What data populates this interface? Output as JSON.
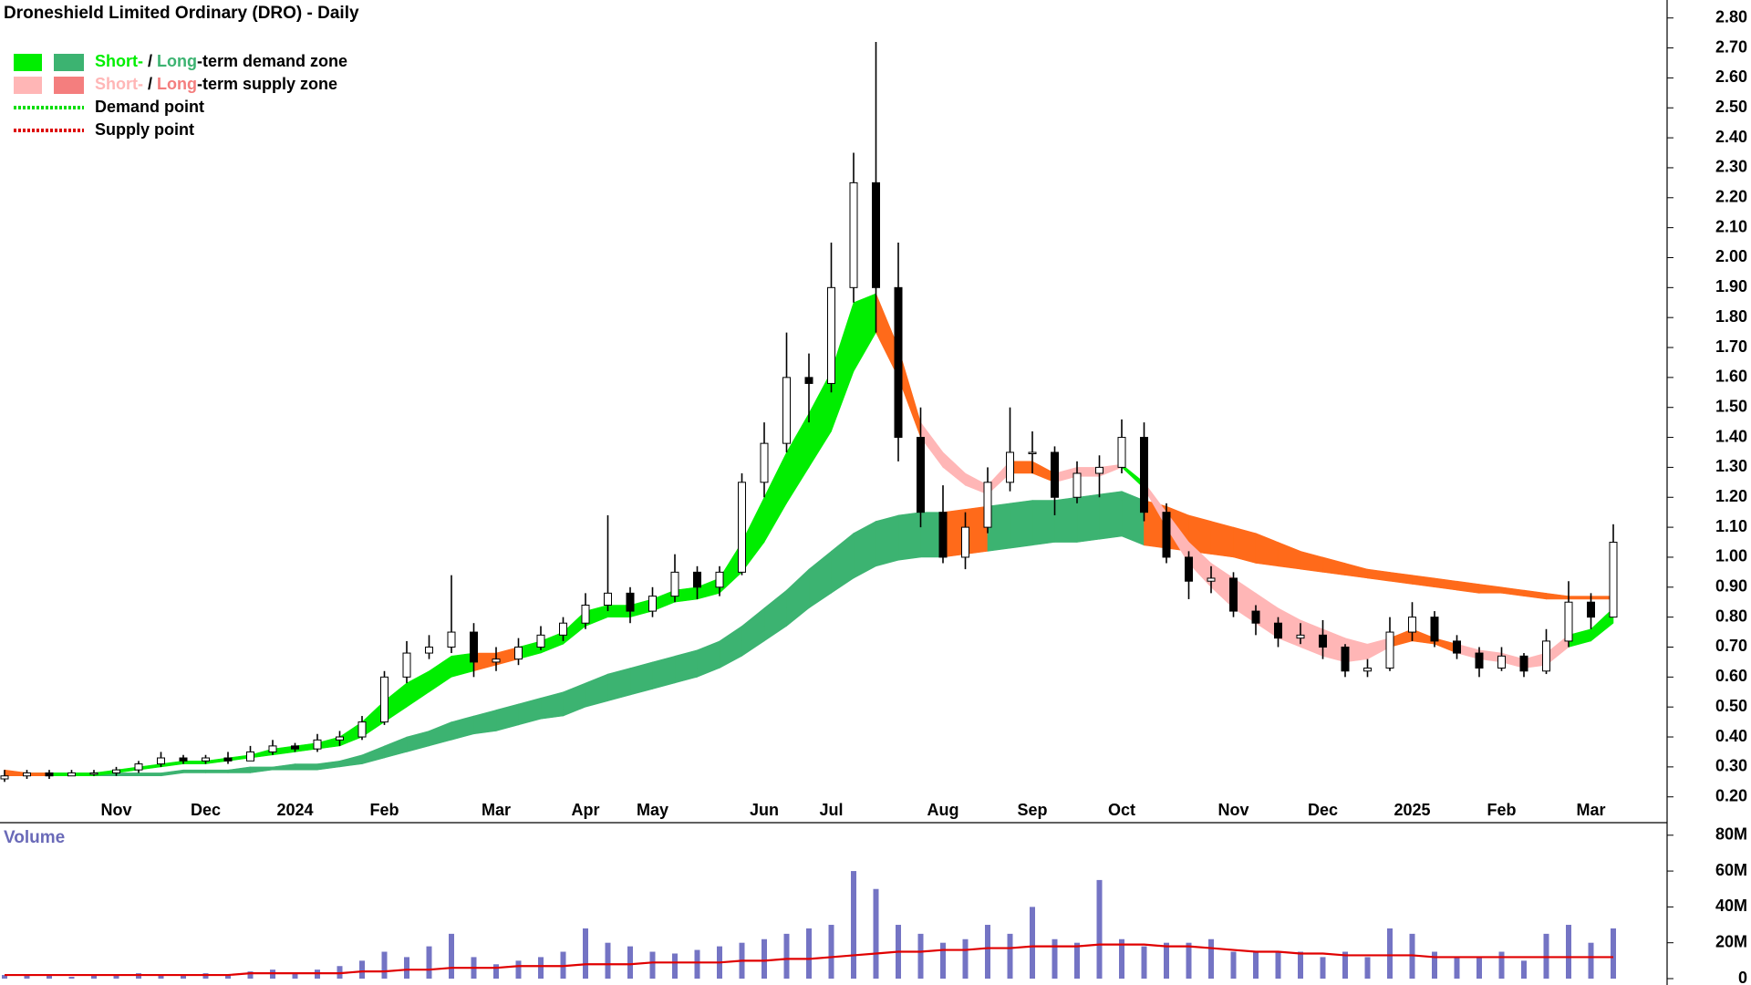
{
  "chart_data": [
    {
      "type": "candlestick",
      "title": "Droneshield Limited Ordinary (DRO) - Daily",
      "categories": [
        null,
        null,
        null,
        null,
        null,
        "Nov",
        null,
        null,
        null,
        "Dec",
        null,
        null,
        null,
        "2024",
        null,
        null,
        null,
        "Feb",
        null,
        null,
        null,
        null,
        "Mar",
        null,
        null,
        null,
        "Apr",
        null,
        null,
        "May",
        null,
        null,
        null,
        null,
        "Jun",
        null,
        null,
        "Jul",
        null,
        null,
        null,
        null,
        "Aug",
        null,
        null,
        null,
        "Sep",
        null,
        null,
        null,
        "Oct",
        null,
        null,
        null,
        null,
        "Nov",
        null,
        null,
        null,
        "Dec",
        null,
        null,
        null,
        "2025",
        null,
        null,
        null,
        "Feb",
        null,
        null,
        null,
        "Mar",
        null
      ],
      "open": [
        0.26,
        0.27,
        0.28,
        0.27,
        0.28,
        0.28,
        0.29,
        0.31,
        0.33,
        0.32,
        0.33,
        0.32,
        0.35,
        0.37,
        0.36,
        0.39,
        0.4,
        0.45,
        0.6,
        0.68,
        0.7,
        0.75,
        0.65,
        0.66,
        0.7,
        0.74,
        0.78,
        0.84,
        0.88,
        0.82,
        0.87,
        0.95,
        0.9,
        0.95,
        1.25,
        1.38,
        1.6,
        1.58,
        1.9,
        2.25,
        1.9,
        1.4,
        1.15,
        1.0,
        1.1,
        1.25,
        1.35,
        1.35,
        1.2,
        1.28,
        1.3,
        1.4,
        1.15,
        1.0,
        0.92,
        0.93,
        0.82,
        0.78,
        0.73,
        0.74,
        0.7,
        0.62,
        0.63,
        0.75,
        0.8,
        0.72,
        0.68,
        0.63,
        0.67,
        0.62,
        0.72,
        0.85,
        0.8
      ],
      "high": [
        0.29,
        0.29,
        0.29,
        0.29,
        0.29,
        0.3,
        0.32,
        0.35,
        0.34,
        0.34,
        0.35,
        0.37,
        0.39,
        0.38,
        0.41,
        0.42,
        0.47,
        0.62,
        0.72,
        0.74,
        0.94,
        0.78,
        0.7,
        0.73,
        0.77,
        0.8,
        0.88,
        1.14,
        0.9,
        0.9,
        1.01,
        0.97,
        0.97,
        1.28,
        1.45,
        1.75,
        1.68,
        2.05,
        2.35,
        2.72,
        2.05,
        1.5,
        1.24,
        1.15,
        1.3,
        1.5,
        1.42,
        1.37,
        1.32,
        1.34,
        1.46,
        1.45,
        1.18,
        1.02,
        0.97,
        0.95,
        0.84,
        0.8,
        0.78,
        0.79,
        0.71,
        0.66,
        0.8,
        0.85,
        0.82,
        0.74,
        0.7,
        0.7,
        0.68,
        0.76,
        0.92,
        0.88,
        1.11
      ],
      "low": [
        0.25,
        0.26,
        0.26,
        0.27,
        0.27,
        0.27,
        0.28,
        0.3,
        0.31,
        0.31,
        0.31,
        0.32,
        0.34,
        0.35,
        0.35,
        0.37,
        0.39,
        0.44,
        0.58,
        0.66,
        0.68,
        0.6,
        0.62,
        0.64,
        0.69,
        0.72,
        0.76,
        0.82,
        0.78,
        0.8,
        0.85,
        0.86,
        0.87,
        0.94,
        1.2,
        1.35,
        1.45,
        1.55,
        1.85,
        1.75,
        1.32,
        1.1,
        0.98,
        0.96,
        1.08,
        1.22,
        1.28,
        1.14,
        1.18,
        1.2,
        1.28,
        1.12,
        0.98,
        0.86,
        0.88,
        0.8,
        0.74,
        0.7,
        0.71,
        0.66,
        0.6,
        0.6,
        0.62,
        0.72,
        0.7,
        0.66,
        0.6,
        0.62,
        0.6,
        0.61,
        0.7,
        0.76,
        0.8
      ],
      "close": [
        0.27,
        0.28,
        0.27,
        0.28,
        0.28,
        0.29,
        0.31,
        0.33,
        0.32,
        0.33,
        0.32,
        0.35,
        0.37,
        0.36,
        0.39,
        0.4,
        0.45,
        0.6,
        0.68,
        0.7,
        0.75,
        0.65,
        0.66,
        0.7,
        0.74,
        0.78,
        0.84,
        0.88,
        0.82,
        0.87,
        0.95,
        0.9,
        0.95,
        1.25,
        1.38,
        1.6,
        1.58,
        1.9,
        2.25,
        1.9,
        1.4,
        1.15,
        1.0,
        1.1,
        1.25,
        1.35,
        1.35,
        1.2,
        1.28,
        1.3,
        1.4,
        1.15,
        1.0,
        0.92,
        0.93,
        0.82,
        0.78,
        0.73,
        0.74,
        0.7,
        0.62,
        0.63,
        0.75,
        0.8,
        0.72,
        0.68,
        0.63,
        0.67,
        0.62,
        0.72,
        0.85,
        0.8,
        1.05
      ],
      "up_color": "#ffffff",
      "down_color": "#000000",
      "wick_color": "#000000",
      "zones": [
        {
          "upper": [
            0.28,
            0.28,
            0.28,
            0.28,
            0.28,
            0.28,
            0.28,
            0.28,
            0.29,
            0.29,
            0.29,
            0.3,
            0.3,
            0.31,
            0.31,
            0.32,
            0.34,
            0.37,
            0.4,
            0.42,
            0.45,
            0.47,
            0.49,
            0.51,
            0.53,
            0.55,
            0.58,
            0.61,
            0.63,
            0.65,
            0.67,
            0.69,
            0.72,
            0.77,
            0.83,
            0.89,
            0.96,
            1.02,
            1.08,
            1.12,
            1.14,
            1.15,
            1.15,
            1.16,
            1.17,
            1.18,
            1.19,
            1.19,
            1.2,
            1.21,
            1.22,
            1.19,
            1.17,
            1.14,
            1.12,
            1.1,
            1.08,
            1.05,
            1.02,
            1.0,
            0.98,
            0.96,
            0.95,
            0.94,
            0.93,
            0.92,
            0.91,
            0.9,
            0.89,
            0.88,
            0.87,
            0.87,
            0.87
          ],
          "lower": [
            0.27,
            0.27,
            0.27,
            0.27,
            0.27,
            0.27,
            0.27,
            0.27,
            0.28,
            0.28,
            0.28,
            0.28,
            0.29,
            0.29,
            0.29,
            0.3,
            0.31,
            0.33,
            0.35,
            0.37,
            0.39,
            0.41,
            0.42,
            0.44,
            0.46,
            0.47,
            0.5,
            0.52,
            0.54,
            0.56,
            0.58,
            0.6,
            0.63,
            0.67,
            0.72,
            0.77,
            0.83,
            0.88,
            0.93,
            0.97,
            0.99,
            1.0,
            1.0,
            1.01,
            1.02,
            1.03,
            1.04,
            1.05,
            1.05,
            1.06,
            1.07,
            1.04,
            1.03,
            1.02,
            1.01,
            1.0,
            0.98,
            0.97,
            0.96,
            0.95,
            0.94,
            0.93,
            0.92,
            0.91,
            0.9,
            0.89,
            0.88,
            0.88,
            0.87,
            0.86,
            0.86,
            0.86,
            0.86
          ],
          "colors": [
            "#3cb371",
            "#3cb371",
            "#3cb371",
            "#3cb371",
            "#3cb371",
            "#3cb371",
            "#3cb371",
            "#3cb371",
            "#3cb371",
            "#3cb371",
            "#3cb371",
            "#3cb371",
            "#3cb371",
            "#3cb371",
            "#3cb371",
            "#3cb371",
            "#3cb371",
            "#3cb371",
            "#3cb371",
            "#3cb371",
            "#3cb371",
            "#3cb371",
            "#3cb371",
            "#3cb371",
            "#3cb371",
            "#3cb371",
            "#3cb371",
            "#3cb371",
            "#3cb371",
            "#3cb371",
            "#3cb371",
            "#3cb371",
            "#3cb371",
            "#3cb371",
            "#3cb371",
            "#3cb371",
            "#3cb371",
            "#3cb371",
            "#3cb371",
            "#3cb371",
            "#3cb371",
            "#3cb371",
            "#ff6a1a",
            "#ff6a1a",
            "#3cb371",
            "#3cb371",
            "#3cb371",
            "#3cb371",
            "#3cb371",
            "#3cb371",
            "#3cb371",
            "#ff6a1a",
            "#ff6a1a",
            "#ff6a1a",
            "#ff6a1a",
            "#ff6a1a",
            "#ff6a1a",
            "#ff6a1a",
            "#ff6a1a",
            "#ff6a1a",
            "#ff6a1a",
            "#ff6a1a",
            "#ff6a1a",
            "#ff6a1a",
            "#ff6a1a",
            "#ff6a1a",
            "#ff6a1a",
            "#ff6a1a",
            "#ff6a1a",
            "#ff6a1a",
            "#ff6a1a",
            "#ff6a1a",
            "#ff6a1a"
          ]
        },
        {
          "upper": [
            0.29,
            0.28,
            0.28,
            0.28,
            0.28,
            0.29,
            0.3,
            0.31,
            0.32,
            0.32,
            0.33,
            0.34,
            0.36,
            0.37,
            0.38,
            0.4,
            0.45,
            0.52,
            0.58,
            0.62,
            0.67,
            0.68,
            0.68,
            0.7,
            0.72,
            0.75,
            0.82,
            0.84,
            0.84,
            0.86,
            0.89,
            0.9,
            0.93,
            1.05,
            1.2,
            1.35,
            1.48,
            1.62,
            1.85,
            1.88,
            1.7,
            1.45,
            1.35,
            1.28,
            1.24,
            1.32,
            1.32,
            1.28,
            1.3,
            1.3,
            1.31,
            1.25,
            1.15,
            1.05,
            0.98,
            0.93,
            0.88,
            0.83,
            0.79,
            0.76,
            0.73,
            0.71,
            0.73,
            0.76,
            0.73,
            0.71,
            0.69,
            0.68,
            0.66,
            0.68,
            0.74,
            0.76,
            0.83
          ],
          "lower": [
            0.27,
            0.27,
            0.27,
            0.27,
            0.27,
            0.28,
            0.29,
            0.3,
            0.31,
            0.31,
            0.32,
            0.33,
            0.34,
            0.35,
            0.36,
            0.37,
            0.4,
            0.45,
            0.5,
            0.55,
            0.6,
            0.62,
            0.64,
            0.66,
            0.68,
            0.71,
            0.77,
            0.8,
            0.8,
            0.82,
            0.85,
            0.86,
            0.88,
            0.95,
            1.05,
            1.18,
            1.3,
            1.42,
            1.62,
            1.75,
            1.6,
            1.4,
            1.3,
            1.24,
            1.21,
            1.28,
            1.28,
            1.25,
            1.27,
            1.27,
            1.3,
            1.23,
            1.1,
            0.98,
            0.9,
            0.83,
            0.78,
            0.73,
            0.7,
            0.67,
            0.65,
            0.66,
            0.7,
            0.72,
            0.71,
            0.68,
            0.66,
            0.65,
            0.63,
            0.64,
            0.7,
            0.72,
            0.78
          ],
          "colors": [
            "#ff6a1a",
            "#ff6a1a",
            "#00ee00",
            "#00ee00",
            "#00ee00",
            "#00ee00",
            "#00ee00",
            "#00ee00",
            "#00ee00",
            "#00ee00",
            "#00ee00",
            "#00ee00",
            "#00ee00",
            "#00ee00",
            "#00ee00",
            "#00ee00",
            "#00ee00",
            "#00ee00",
            "#00ee00",
            "#00ee00",
            "#00ee00",
            "#ff6a1a",
            "#ff6a1a",
            "#00ee00",
            "#00ee00",
            "#00ee00",
            "#00ee00",
            "#00ee00",
            "#00ee00",
            "#00ee00",
            "#00ee00",
            "#00ee00",
            "#00ee00",
            "#00ee00",
            "#00ee00",
            "#00ee00",
            "#00ee00",
            "#00ee00",
            "#00ee00",
            "#ff6a1a",
            "#ff6a1a",
            "#ffb6b6",
            "#ffb6b6",
            "#ffb6b6",
            "#ffb6b6",
            "#ff6a1a",
            "#ff6a1a",
            "#ffb6b6",
            "#ffb6b6",
            "#ffb6b6",
            "#00ee00",
            "#ffb6b6",
            "#ffb6b6",
            "#ffb6b6",
            "#ffb6b6",
            "#ffb6b6",
            "#ffb6b6",
            "#ffb6b6",
            "#ffb6b6",
            "#ffb6b6",
            "#ffb6b6",
            "#ffb6b6",
            "#ff6a1a",
            "#ff6a1a",
            "#ff6a1a",
            "#ffb6b6",
            "#ffb6b6",
            "#ffb6b6",
            "#ffb6b6",
            "#ffb6b6",
            "#00ee00",
            "#00ee00",
            "#00ee00"
          ]
        }
      ],
      "legend": [
        {
          "short": "Short-",
          "sep": "/",
          "long": "Long",
          "text": "-term demand zone",
          "short_color": "#00ee00",
          "long_color": "#3cb371"
        },
        {
          "short": "Short-",
          "sep": "/",
          "long": "Long",
          "text": "-term supply zone",
          "short_color": "#ffb6b6",
          "long_color": "#f47e7e"
        },
        {
          "text": "Demand point",
          "line_color": "#00dd00"
        },
        {
          "text": "Supply point",
          "line_color": "#dd0000"
        }
      ],
      "ylim": [
        0.12,
        2.86
      ],
      "yticks": [
        {
          "value": 0.2,
          "label": "0.20"
        },
        {
          "value": 0.3,
          "label": "0.30"
        },
        {
          "value": 0.4,
          "label": "0.40"
        },
        {
          "value": 0.5,
          "label": "0.50"
        },
        {
          "value": 0.6,
          "label": "0.60"
        },
        {
          "value": 0.7,
          "label": "0.70"
        },
        {
          "value": 0.8,
          "label": "0.80"
        },
        {
          "value": 0.9,
          "label": "0.90"
        },
        {
          "value": 1.0,
          "label": "1.00"
        },
        {
          "value": 1.1,
          "label": "1.10"
        },
        {
          "value": 1.2,
          "label": "1.20"
        },
        {
          "value": 1.3,
          "label": "1.30"
        },
        {
          "value": 1.4,
          "label": "1.40"
        },
        {
          "value": 1.5,
          "label": "1.50"
        },
        {
          "value": 1.6,
          "label": "1.60"
        },
        {
          "value": 1.7,
          "label": "1.70"
        },
        {
          "value": 1.8,
          "label": "1.80"
        },
        {
          "value": 1.9,
          "label": "1.90"
        },
        {
          "value": 2.0,
          "label": "2.00"
        },
        {
          "value": 2.1,
          "label": "2.10"
        },
        {
          "value": 2.2,
          "label": "2.20"
        },
        {
          "value": 2.3,
          "label": "2.30"
        },
        {
          "value": 2.4,
          "label": "2.40"
        },
        {
          "value": 2.5,
          "label": "2.50"
        },
        {
          "value": 2.6,
          "label": "2.60"
        },
        {
          "value": 2.7,
          "label": "2.70"
        },
        {
          "value": 2.8,
          "label": "2.80"
        }
      ],
      "grid": false
    },
    {
      "type": "bar",
      "title": "Volume",
      "color": "#7474c4",
      "values": [
        2,
        2,
        2,
        1,
        2,
        2,
        3,
        2,
        2,
        3,
        2,
        4,
        5,
        3,
        5,
        7,
        10,
        15,
        12,
        18,
        25,
        12,
        8,
        10,
        12,
        15,
        28,
        20,
        18,
        15,
        14,
        16,
        18,
        20,
        22,
        25,
        28,
        30,
        60,
        50,
        30,
        25,
        20,
        22,
        30,
        25,
        40,
        22,
        20,
        55,
        22,
        18,
        20,
        20,
        22,
        15,
        15,
        15,
        15,
        12,
        15,
        12,
        28,
        25,
        15,
        12,
        12,
        15,
        10,
        25,
        30,
        20,
        28
      ],
      "average": {
        "color": "#e00000",
        "values": [
          2,
          2,
          2,
          2,
          2,
          2,
          2,
          2,
          2,
          2,
          2,
          3,
          3,
          3,
          3,
          3,
          4,
          4,
          5,
          5,
          6,
          6,
          6,
          7,
          7,
          7,
          8,
          8,
          8,
          9,
          9,
          9,
          9,
          10,
          10,
          11,
          11,
          12,
          13,
          14,
          15,
          15,
          16,
          16,
          17,
          17,
          18,
          18,
          18,
          19,
          19,
          19,
          18,
          18,
          17,
          16,
          15,
          15,
          14,
          14,
          13,
          13,
          13,
          13,
          12,
          12,
          12,
          12,
          12,
          12,
          12,
          12,
          12
        ]
      },
      "ylim": [
        0,
        87
      ],
      "yticks": [
        0,
        {
          "value": 20,
          "label": "20M"
        },
        {
          "value": 40,
          "label": "40M"
        },
        {
          "value": 60,
          "label": "60M"
        },
        {
          "value": 80,
          "label": "80M"
        }
      ],
      "grid": false
    }
  ]
}
